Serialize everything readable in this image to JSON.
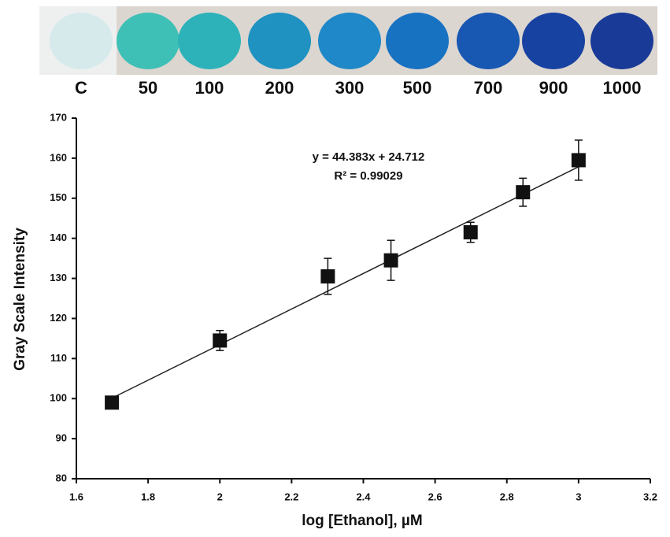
{
  "spots": [
    {
      "label": "C",
      "color": "#d6eaec"
    },
    {
      "label": "50",
      "color": "#3fc0b6"
    },
    {
      "label": "100",
      "color": "#2eb2ba"
    },
    {
      "label": "200",
      "color": "#1f92c2"
    },
    {
      "label": "300",
      "color": "#1f88c8"
    },
    {
      "label": "500",
      "color": "#1872c2"
    },
    {
      "label": "700",
      "color": "#1858b2"
    },
    {
      "label": "900",
      "color": "#1842a2"
    },
    {
      "label": "1000",
      "color": "#193a96"
    }
  ],
  "chart_data": {
    "type": "scatter",
    "x_label": "log [Ethanol], µM",
    "y_label": "Gray Scale Intensity",
    "annotations": [
      "y = 44.383x + 24.712",
      "R² = 0.99029"
    ],
    "x": [
      1.699,
      2,
      2.301,
      2.477,
      2.699,
      2.845,
      3
    ],
    "values": [
      99,
      114.5,
      130.5,
      134.5,
      141.5,
      151.5,
      159.5
    ],
    "errors": [
      1,
      2.5,
      4.5,
      5,
      2.5,
      3.5,
      5
    ],
    "fit": {
      "slope": 44.383,
      "intercept": 24.712
    },
    "color": "#111111",
    "xlim": [
      1.6,
      3.2
    ],
    "xticks": [
      1.6,
      1.8,
      2,
      2.2,
      2.4,
      2.6,
      2.8,
      3,
      3.2
    ],
    "ylim": [
      80,
      170
    ],
    "yticks": [
      80,
      90,
      100,
      110,
      120,
      130,
      140,
      150,
      160,
      170
    ]
  }
}
